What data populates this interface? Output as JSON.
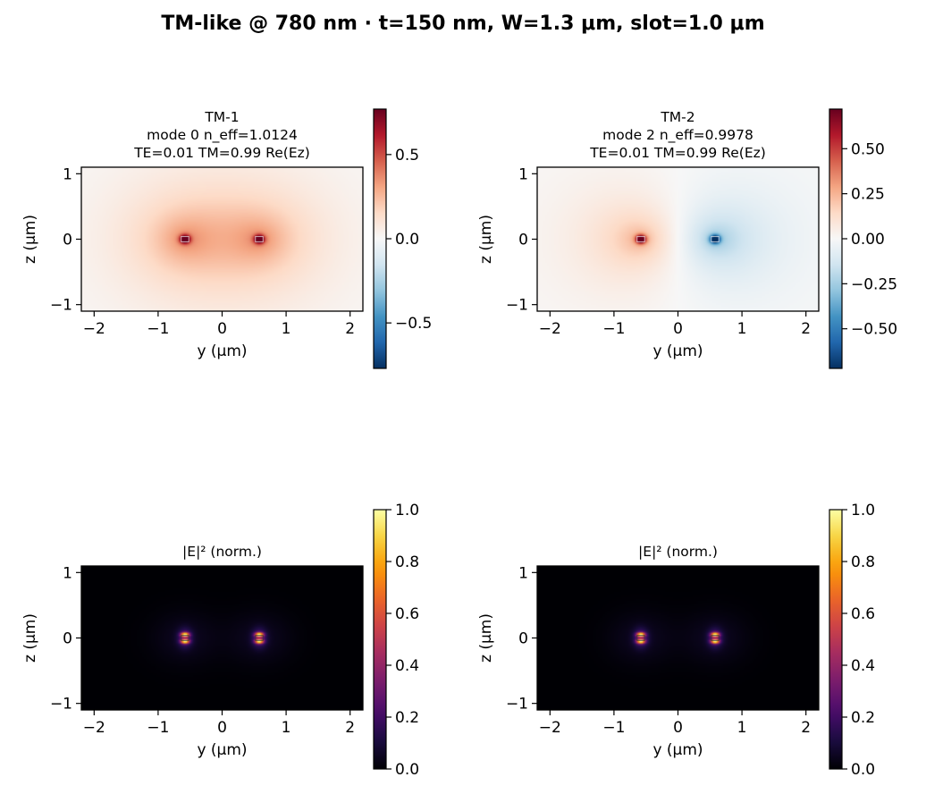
{
  "figure": {
    "suptitle": "TM-like @ 780 nm · t=150 nm, W=1.3 μm, slot=1.0 μm"
  },
  "chart_data": [
    {
      "type": "heatmap",
      "panel": "top-left",
      "title": [
        "TM-1",
        "mode 0  n_eff=1.0124",
        "TE=0.01  TM=0.99  Re(Ez)"
      ],
      "xlabel": "y (μm)",
      "ylabel": "z (μm)",
      "xlim": [
        -2.2,
        2.2
      ],
      "ylim": [
        -1.1,
        1.1
      ],
      "xticks": [
        -2,
        -1,
        0,
        1,
        2
      ],
      "xtick_labels": [
        "−2",
        "−1",
        "0",
        "1",
        "2"
      ],
      "yticks": [
        -1,
        0,
        1
      ],
      "ytick_labels": [
        "−1",
        "0",
        "1"
      ],
      "field": "Re(Ez)",
      "colormap": "RdBu_r",
      "mode_parity": "symmetric",
      "cores_y": [
        -0.58,
        0.58
      ],
      "clim": [
        -0.77,
        0.77
      ],
      "colorbar_ticks": [
        -0.5,
        0.0,
        0.5
      ],
      "colorbar_labels": [
        "−0.5",
        "0.0",
        "0.5"
      ]
    },
    {
      "type": "heatmap",
      "panel": "top-right",
      "title": [
        "TM-2",
        "mode 2  n_eff=0.9978",
        "TE=0.01  TM=0.99  Re(Ez)"
      ],
      "xlabel": "y (μm)",
      "ylabel": "z (μm)",
      "xlim": [
        -2.2,
        2.2
      ],
      "ylim": [
        -1.1,
        1.1
      ],
      "xticks": [
        -2,
        -1,
        0,
        1,
        2
      ],
      "xtick_labels": [
        "−2",
        "−1",
        "0",
        "1",
        "2"
      ],
      "yticks": [
        -1,
        0,
        1
      ],
      "ytick_labels": [
        "−1",
        "0",
        "1"
      ],
      "field": "Re(Ez)",
      "colormap": "RdBu_r",
      "mode_parity": "antisymmetric",
      "cores_y": [
        -0.58,
        0.58
      ],
      "clim": [
        -0.72,
        0.72
      ],
      "colorbar_ticks": [
        -0.5,
        -0.25,
        0.0,
        0.25,
        0.5
      ],
      "colorbar_labels": [
        "−0.50",
        "−0.25",
        "0.00",
        "0.25",
        "0.50"
      ]
    },
    {
      "type": "heatmap",
      "panel": "bottom-left",
      "title": [
        "|E|² (norm.)"
      ],
      "xlabel": "y (μm)",
      "ylabel": "z (μm)",
      "xlim": [
        -2.2,
        2.2
      ],
      "ylim": [
        -1.1,
        1.1
      ],
      "xticks": [
        -2,
        -1,
        0,
        1,
        2
      ],
      "xtick_labels": [
        "−2",
        "−1",
        "0",
        "1",
        "2"
      ],
      "yticks": [
        -1,
        0,
        1
      ],
      "ytick_labels": [
        "−1",
        "0",
        "1"
      ],
      "field": "|E|^2",
      "colormap": "inferno",
      "mode_parity": "symmetric",
      "cores_y": [
        -0.58,
        0.58
      ],
      "clim": [
        0,
        1
      ],
      "colorbar_ticks": [
        0.0,
        0.2,
        0.4,
        0.6,
        0.8,
        1.0
      ],
      "colorbar_labels": [
        "0.0",
        "0.2",
        "0.4",
        "0.6",
        "0.8",
        "1.0"
      ]
    },
    {
      "type": "heatmap",
      "panel": "bottom-right",
      "title": [
        "|E|² (norm.)"
      ],
      "xlabel": "y (μm)",
      "ylabel": "z (μm)",
      "xlim": [
        -2.2,
        2.2
      ],
      "ylim": [
        -1.1,
        1.1
      ],
      "xticks": [
        -2,
        -1,
        0,
        1,
        2
      ],
      "xtick_labels": [
        "−2",
        "−1",
        "0",
        "1",
        "2"
      ],
      "yticks": [
        -1,
        0,
        1
      ],
      "ytick_labels": [
        "−1",
        "0",
        "1"
      ],
      "field": "|E|^2",
      "colormap": "inferno",
      "mode_parity": "antisymmetric",
      "cores_y": [
        -0.58,
        0.58
      ],
      "clim": [
        0,
        1
      ],
      "colorbar_ticks": [
        0.0,
        0.2,
        0.4,
        0.6,
        0.8,
        1.0
      ],
      "colorbar_labels": [
        "0.0",
        "0.2",
        "0.4",
        "0.6",
        "0.8",
        "1.0"
      ]
    }
  ]
}
